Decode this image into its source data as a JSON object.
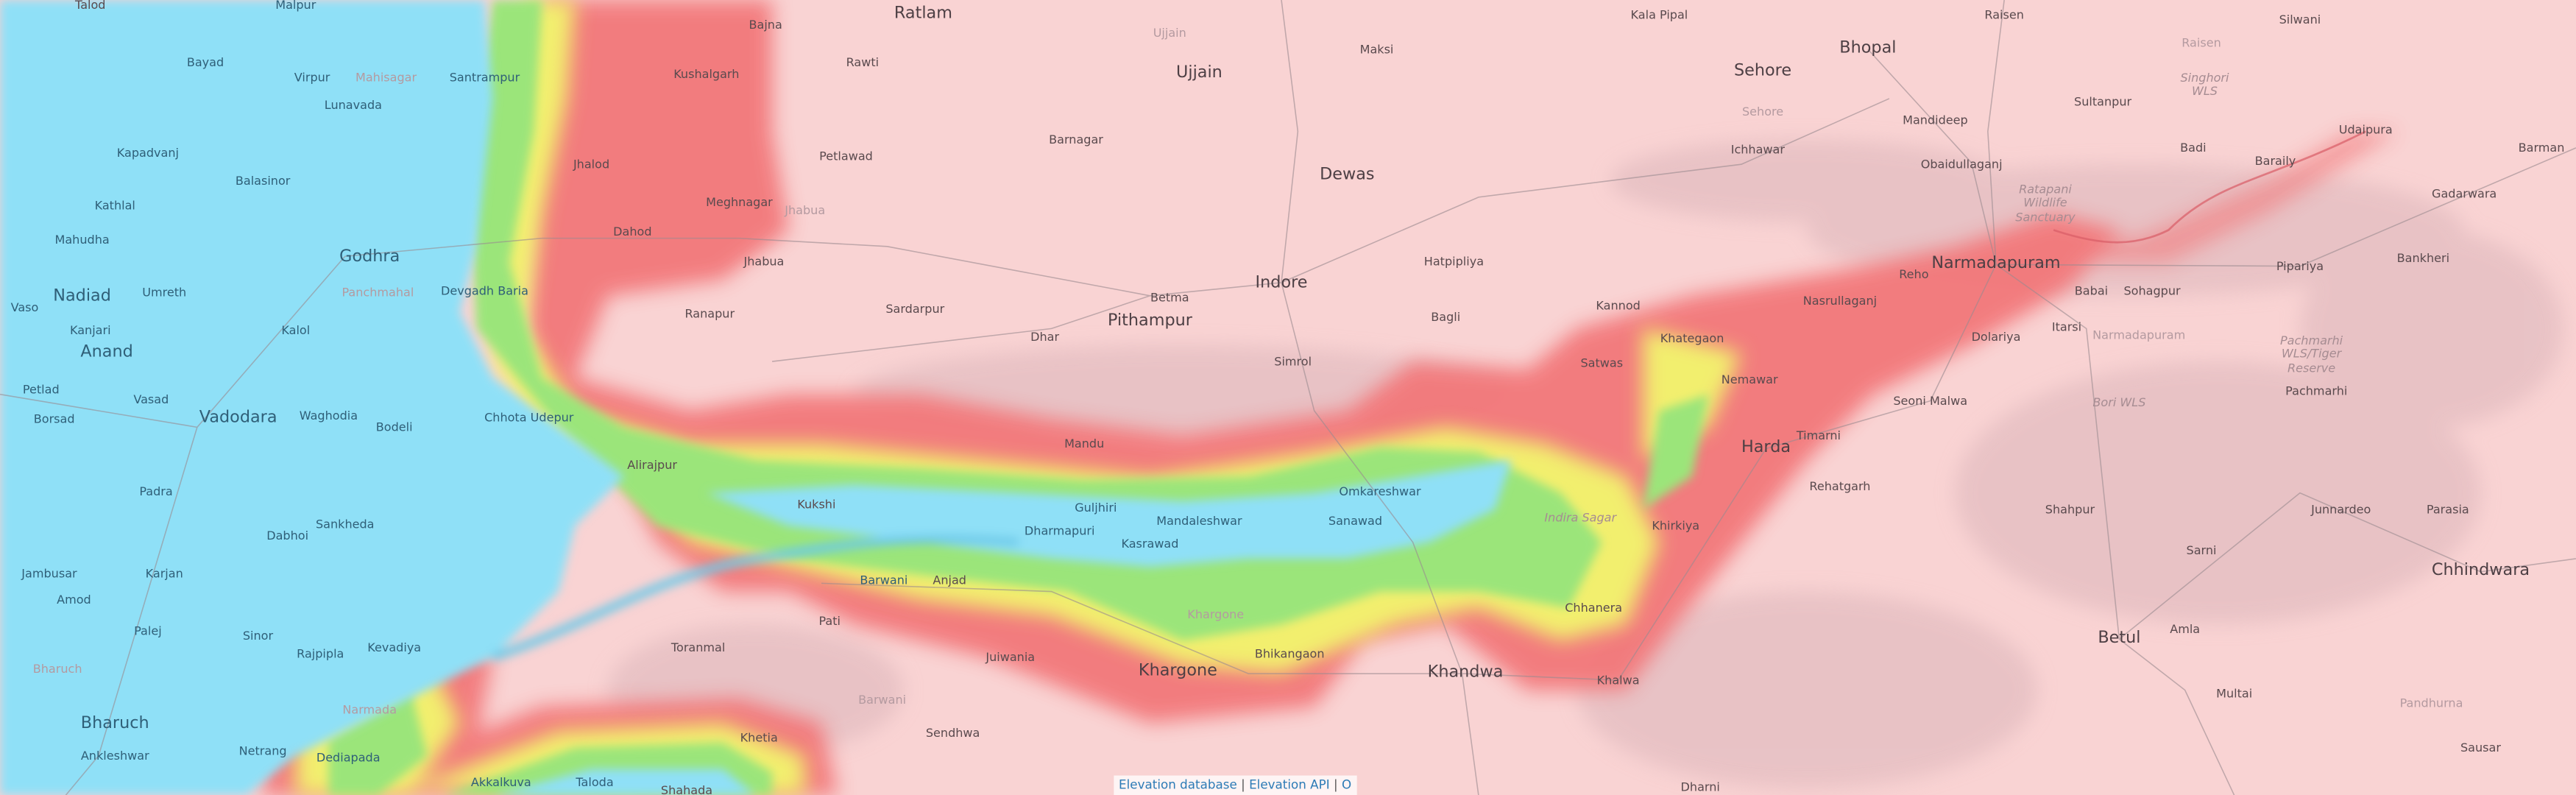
{
  "map": {
    "type": "topographic-elevation-map",
    "colors": {
      "base": "#f9d3d3",
      "lowland": "#8fe0f7",
      "green": "#9be57a",
      "yellow": "#f2ef6e",
      "red": "#f2787a"
    },
    "labels": [
      "Talod",
      "Malpur",
      "Bajna",
      "Ratlam",
      "Ujjain",
      "Ujjain",
      "Maksi",
      "Kala Pipal",
      "Sehore",
      "Sehore",
      "Bhopal",
      "Raisen",
      "Raisen",
      "Silwani",
      "Singhori WLS",
      "Bayad",
      "Virpur",
      "Mahisagar",
      "Santrampur",
      "Kushalgarh",
      "Rawti",
      "Lunavada",
      "Barnagar",
      "Petlawad",
      "Dewas",
      "Ichhawar",
      "Mandideep",
      "Sultanpur",
      "Udaipura",
      "Kapadvanj",
      "Balasinor",
      "Jhalod",
      "Meghnagar",
      "Jhabua",
      "Obaidullaganj",
      "Ratapani Wildlife Sanctuary",
      "Badi",
      "Baraily",
      "Barman",
      "Kathlal",
      "Mahudha",
      "Godhra",
      "Dahod",
      "Jhabua",
      "Hatpipliya",
      "Indore",
      "Reho",
      "Narmadapuram",
      "Bankheri",
      "Pipariya",
      "Babai",
      "Sohagpur",
      "Gadarwara",
      "Nadiad",
      "Vaso",
      "Umreth",
      "Panchmahal",
      "Devgadh Baria",
      "Ranapur",
      "Sardarpur",
      "Betma",
      "Pithampur",
      "Bagli",
      "Kannod",
      "Nasrullaganj",
      "Kanjari",
      "Kalol",
      "Anand",
      "Dhar",
      "Simrol",
      "Satwas",
      "Khategaon",
      "Dolariya",
      "Itarsi",
      "Narmadapuram",
      "Petlad",
      "Vasad",
      "Borsad",
      "Vadodara",
      "Waghodia",
      "Nemawar",
      "Seoni Malwa",
      "Pachmarhi WLS/Tiger Reserve",
      "Bori WLS",
      "Pachmarhi",
      "Chhota Udepur",
      "Mandu",
      "Harda",
      "Timarni",
      "Alirajpur",
      "Bodeli",
      "Padra",
      "Kukshi",
      "Guljhiri",
      "Omkareshwar",
      "Rehatgarh",
      "Sankheda",
      "Dharmapuri",
      "Mandaleshwar",
      "Sanawad",
      "Kasrawad",
      "Indira Sagar",
      "Khirkiya",
      "Shahpur",
      "Junnardeo",
      "Parasia",
      "Dabhoi",
      "Jambusar",
      "Karjan",
      "Barwani",
      "Anjad",
      "Chhindwara",
      "Sarni",
      "Amod",
      "Palej",
      "Sinor",
      "Chhanera",
      "Amla",
      "Betul",
      "Rajpipla",
      "Kevadiya",
      "Toranmal",
      "Pati",
      "Khargone",
      "Juiwania",
      "Bhikangaon",
      "Khandwa",
      "Khalwa",
      "Multai",
      "Pandhurna",
      "Sausar",
      "Khargone",
      "Bharuch",
      "Sendhwa",
      "Bharuch",
      "Netrang",
      "Dediapada",
      "Khetia",
      "Ankleshwar",
      "Barwani",
      "Akkalkuva",
      "Taloda",
      "Shahada",
      "Dharni",
      "Narmada"
    ]
  },
  "attribution": {
    "link1": "Elevation database",
    "sep": "|",
    "link2": "Elevation API",
    "link3": "O"
  }
}
